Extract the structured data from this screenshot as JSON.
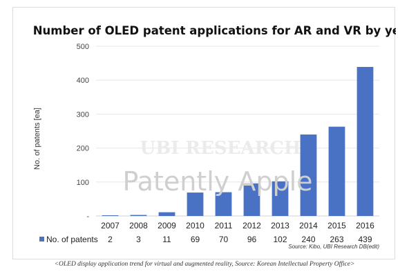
{
  "chart_data": {
    "type": "bar",
    "title": "Number of OLED patent applications for AR and VR by year",
    "ylabel": "No. of patents [ea]",
    "xlabel": "",
    "categories": [
      "2007",
      "2008",
      "2009",
      "2010",
      "2011",
      "2012",
      "2013",
      "2014",
      "2015",
      "2016"
    ],
    "series": [
      {
        "name": "No. of patents",
        "values": [
          2,
          3,
          11,
          69,
          70,
          96,
          102,
          240,
          263,
          439
        ]
      }
    ],
    "ylim": [
      0,
      500
    ],
    "yticks": [
      "-",
      "100",
      "200",
      "300",
      "400",
      "500"
    ],
    "grid": true,
    "legend": "data-table-left",
    "bar_color": "#4a72c4",
    "source": "Source: Kibo, UBI Research DB(edit)"
  },
  "watermark": {
    "text": "Patently Apple",
    "brand": "UBI RESEARCH"
  },
  "caption": "<OLED display application trend for virtual and augmented reality, Source: Korean Intellectual Property Office>"
}
